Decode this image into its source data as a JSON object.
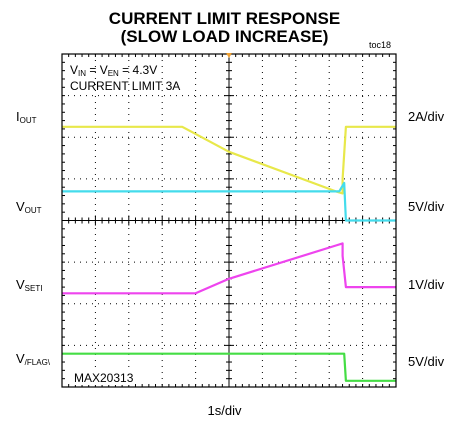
{
  "chart_data": {
    "type": "line",
    "title_line1": "CURRENT LIMIT RESPONSE",
    "title_line2": "(SLOW LOAD INCREASE)",
    "figure_code": "toc18",
    "xlabel": "1s/div",
    "x_divisions": 10,
    "y_divisions": 8,
    "conditions": {
      "vin_main": "V",
      "vin_sub": "IN",
      "eq": " = ",
      "ven_main": "V",
      "ven_sub": "EN",
      "value": " = 4.3V",
      "limit": "CURRENT LIMIT 3A"
    },
    "part_number": "MAX20313",
    "colors": {
      "I_OUT": "#e8e84a",
      "V_OUT": "#44dcec",
      "V_SET": "#ee44ee",
      "V_FLAG": "#44dd44",
      "trigger": "#f0a030",
      "grid": "#000000"
    },
    "channels": [
      {
        "key": "I_OUT",
        "label_main": "I",
        "label_sub": "OUT",
        "scale": "2A/div",
        "points": [
          [
            0,
            1.75
          ],
          [
            3.6,
            1.75
          ],
          [
            5.0,
            2.35
          ],
          [
            8.2,
            3.3
          ],
          [
            8.4,
            3.35
          ],
          [
            8.4,
            3.0
          ],
          [
            8.5,
            1.75
          ],
          [
            10,
            1.75
          ]
        ]
      },
      {
        "key": "V_OUT",
        "label_main": "V",
        "label_sub": "OUT",
        "scale": "5V/div",
        "points": [
          [
            0,
            3.3
          ],
          [
            8.3,
            3.3
          ],
          [
            8.45,
            3.1
          ],
          [
            8.5,
            4.0
          ],
          [
            10,
            4.0
          ]
        ]
      },
      {
        "key": "V_SET",
        "label_main": "V",
        "label_sub": "SETI",
        "scale": "1V/div",
        "points": [
          [
            0,
            5.75
          ],
          [
            4.0,
            5.75
          ],
          [
            5.0,
            5.4
          ],
          [
            8.2,
            4.6
          ],
          [
            8.4,
            4.55
          ],
          [
            8.4,
            4.85
          ],
          [
            8.5,
            5.6
          ],
          [
            10,
            5.6
          ]
        ]
      },
      {
        "key": "V_FLAG",
        "label_main": "V",
        "label_sub": "/FLAG\\",
        "scale": "5V/div",
        "points": [
          [
            0,
            7.2
          ],
          [
            8.45,
            7.2
          ],
          [
            8.5,
            7.85
          ],
          [
            10,
            7.85
          ]
        ]
      }
    ]
  }
}
